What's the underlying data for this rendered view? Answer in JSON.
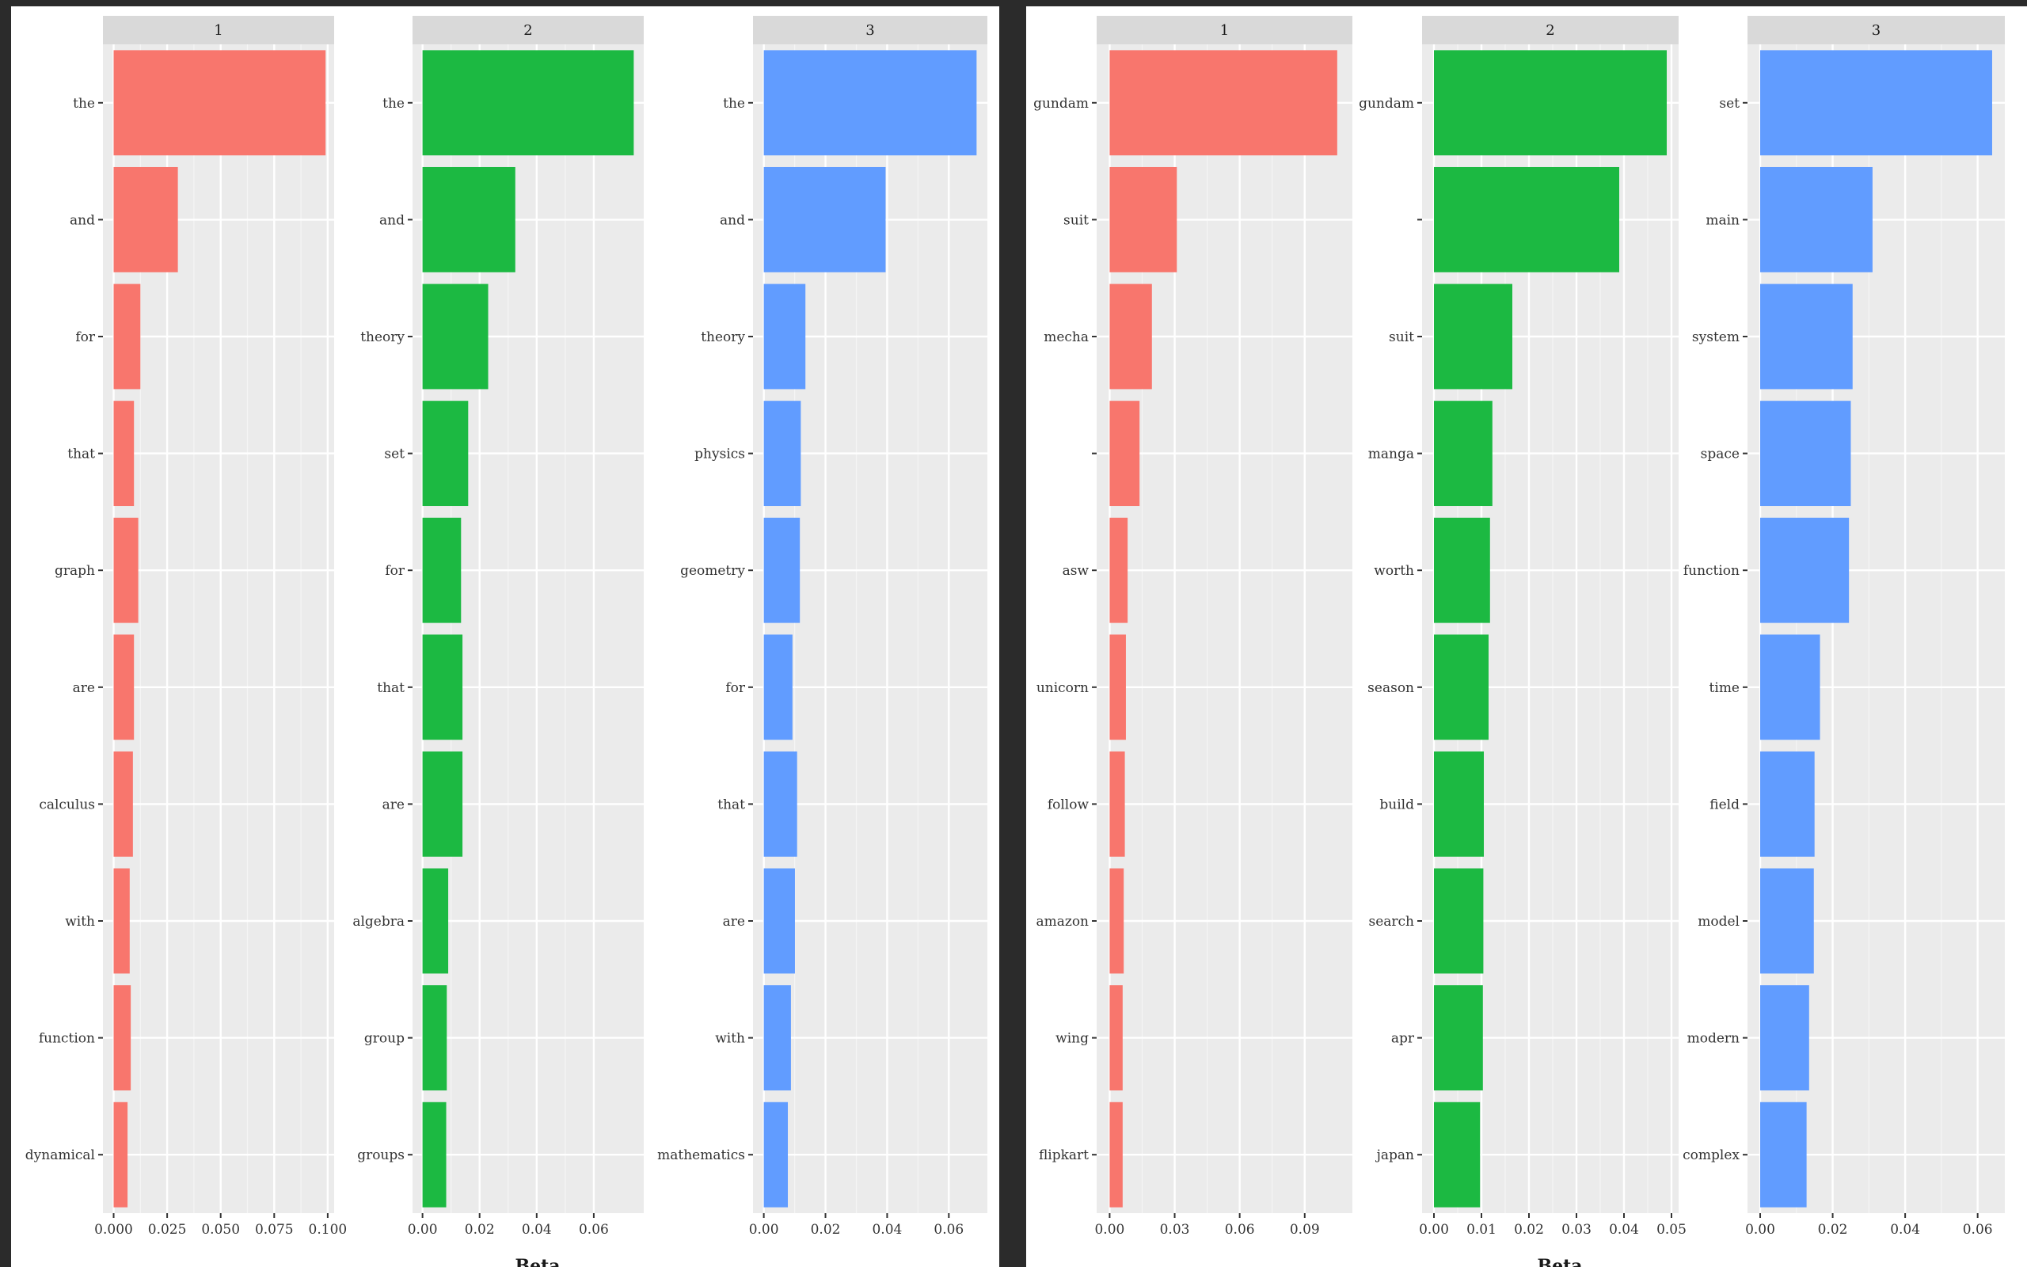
{
  "colors": {
    "background": "#2b2b2b",
    "panel": "#ffffff",
    "plot_bg": "#ebebeb",
    "strip_bg": "#d9d9d9",
    "grid_major": "#ffffff",
    "grid_minor": "#f5f5f5",
    "text": "#333333",
    "topic1": "#f8766d",
    "topic2": "#1cb942",
    "topic3": "#619cff"
  },
  "chart_data": [
    {
      "type": "bar",
      "orientation": "horizontal",
      "xlabel": "Beta",
      "grid": true,
      "facets": [
        {
          "strip": "1",
          "color_key": "topic1",
          "xlim": [
            -0.005,
            0.103
          ],
          "ticks": [
            0,
            0.025,
            0.05,
            0.075,
            0.1
          ],
          "tick_labels": [
            "0.000",
            "0.025",
            "0.050",
            "0.075",
            "0.100"
          ],
          "categories": [
            "the",
            "and",
            "for",
            "that",
            "graph",
            "are",
            "calculus",
            "with",
            "function",
            "dynamical"
          ],
          "values": [
            0.099,
            0.03,
            0.0125,
            0.0095,
            0.0115,
            0.0095,
            0.009,
            0.0075,
            0.008,
            0.0065
          ]
        },
        {
          "strip": "2",
          "color_key": "topic2",
          "xlim": [
            -0.0035,
            0.0775
          ],
          "ticks": [
            0,
            0.02,
            0.04,
            0.06
          ],
          "tick_labels": [
            "0.00",
            "0.02",
            "0.04",
            "0.06"
          ],
          "categories": [
            "the",
            "and",
            "theory",
            "set",
            "for",
            "that",
            "are",
            "algebra",
            "group",
            "groups"
          ],
          "values": [
            0.074,
            0.0325,
            0.023,
            0.016,
            0.0135,
            0.014,
            0.014,
            0.009,
            0.0085,
            0.0083
          ]
        },
        {
          "strip": "3",
          "color_key": "topic3",
          "xlim": [
            -0.0035,
            0.0725
          ],
          "ticks": [
            0,
            0.02,
            0.04,
            0.06
          ],
          "tick_labels": [
            "0.00",
            "0.02",
            "0.04",
            "0.06"
          ],
          "categories": [
            "the",
            "and",
            "theory",
            "physics",
            "geometry",
            "for",
            "that",
            "are",
            "with",
            "mathematics"
          ],
          "values": [
            0.069,
            0.0395,
            0.0135,
            0.012,
            0.0117,
            0.0093,
            0.0108,
            0.0101,
            0.0088,
            0.0078
          ]
        }
      ]
    },
    {
      "type": "bar",
      "orientation": "horizontal",
      "xlabel": "Beta",
      "grid": true,
      "facets": [
        {
          "strip": "1",
          "color_key": "topic1",
          "xlim": [
            -0.006,
            0.112
          ],
          "ticks": [
            0,
            0.03,
            0.06,
            0.09
          ],
          "tick_labels": [
            "0.00",
            "0.03",
            "0.06",
            "0.09"
          ],
          "categories": [
            "gundam",
            "suit",
            "mecha",
            "",
            "asw",
            "unicorn",
            "follow",
            "amazon",
            "wing",
            "flipkart"
          ],
          "values": [
            0.105,
            0.031,
            0.0195,
            0.0138,
            0.0083,
            0.0075,
            0.007,
            0.0065,
            0.006,
            0.006
          ]
        },
        {
          "strip": "2",
          "color_key": "topic2",
          "xlim": [
            -0.0025,
            0.0515
          ],
          "ticks": [
            0,
            0.01,
            0.02,
            0.03,
            0.04,
            0.05
          ],
          "tick_labels": [
            "0.00",
            "0.01",
            "0.02",
            "0.03",
            "0.04",
            "0.05"
          ],
          "categories": [
            "gundam",
            "",
            "suit",
            "manga",
            "worth",
            "season",
            "build",
            "search",
            "apr",
            "japan"
          ],
          "values": [
            0.049,
            0.039,
            0.0165,
            0.0123,
            0.0118,
            0.0115,
            0.0105,
            0.0104,
            0.0103,
            0.0097
          ]
        },
        {
          "strip": "3",
          "color_key": "topic3",
          "xlim": [
            -0.0035,
            0.0675
          ],
          "ticks": [
            0,
            0.02,
            0.04,
            0.06
          ],
          "tick_labels": [
            "0.00",
            "0.02",
            "0.04",
            "0.06"
          ],
          "categories": [
            "set",
            "main",
            "system",
            "space",
            "function",
            "time",
            "field",
            "model",
            "modern",
            "complex"
          ],
          "values": [
            0.064,
            0.031,
            0.0255,
            0.025,
            0.0245,
            0.0165,
            0.015,
            0.0148,
            0.0135,
            0.0128
          ]
        }
      ]
    }
  ]
}
